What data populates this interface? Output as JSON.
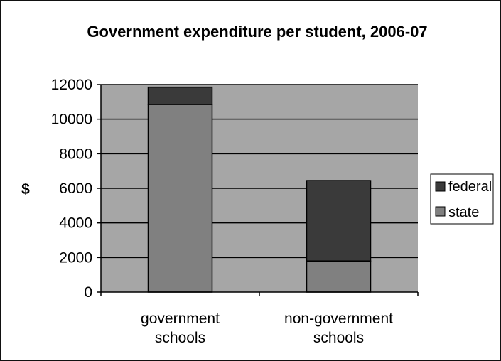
{
  "chart_data": {
    "type": "bar",
    "stacked": true,
    "title": "Government expenditure per student, 2006-07",
    "ylabel": "$",
    "xlabel": "",
    "categories": [
      [
        "government",
        "schools"
      ],
      [
        "non-government",
        "schools"
      ]
    ],
    "series": [
      {
        "name": "state",
        "values": [
          10850,
          1800
        ]
      },
      {
        "name": "federal",
        "values": [
          1000,
          4650
        ]
      }
    ],
    "ylim": [
      0,
      12000
    ],
    "yticks": [
      0,
      2000,
      4000,
      6000,
      8000,
      10000,
      12000
    ],
    "grid": true,
    "legend": "right",
    "colors": {
      "plot_background": "#a6a6a6",
      "state": "#808080",
      "federal": "#3a3a3a",
      "gridline": "#000000"
    }
  }
}
